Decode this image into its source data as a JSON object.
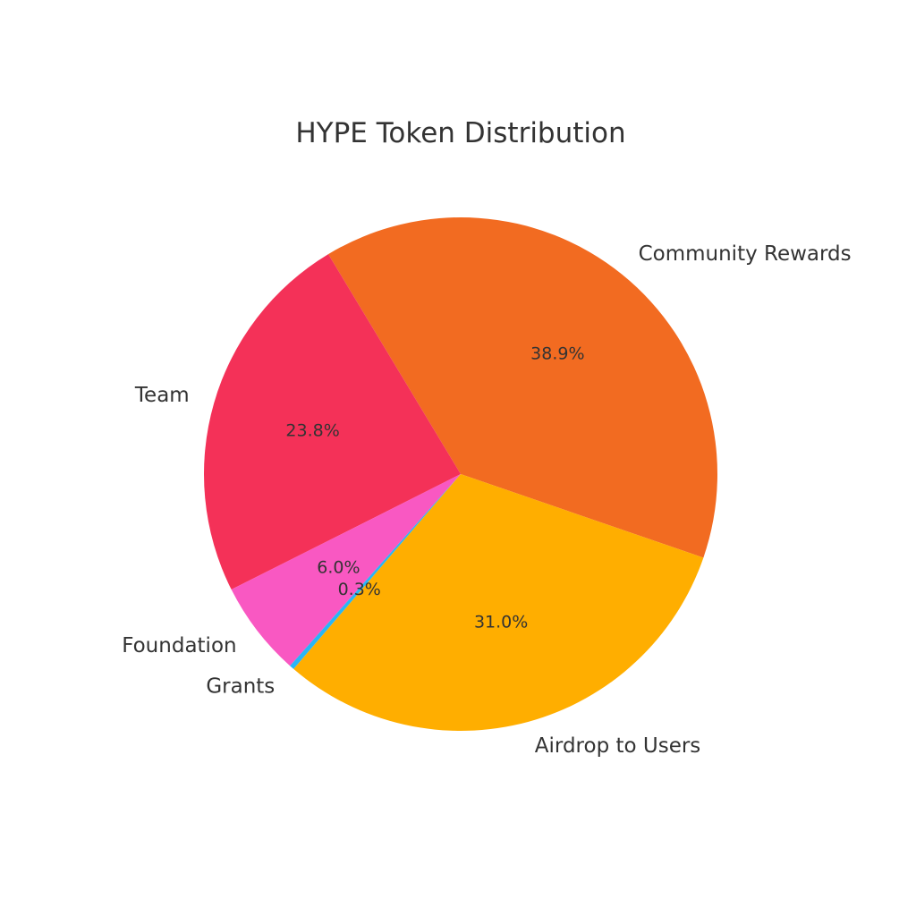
{
  "chart_data": {
    "type": "pie",
    "title": "HYPE Token Distribution",
    "slices": [
      {
        "label": "Community Rewards",
        "value": 38.9,
        "pct_label": "38.9%",
        "color": "#f26b21"
      },
      {
        "label": "Team",
        "value": 23.8,
        "pct_label": "23.8%",
        "color": "#f43158"
      },
      {
        "label": "Foundation",
        "value": 6.0,
        "pct_label": "6.0%",
        "color": "#f958c2"
      },
      {
        "label": "Grants",
        "value": 0.3,
        "pct_label": "0.3%",
        "color": "#29b6f6"
      },
      {
        "label": "Airdrop to Users",
        "value": 31.0,
        "pct_label": "31.0%",
        "color": "#ffae00"
      }
    ],
    "legend": "none",
    "grid": false
  }
}
